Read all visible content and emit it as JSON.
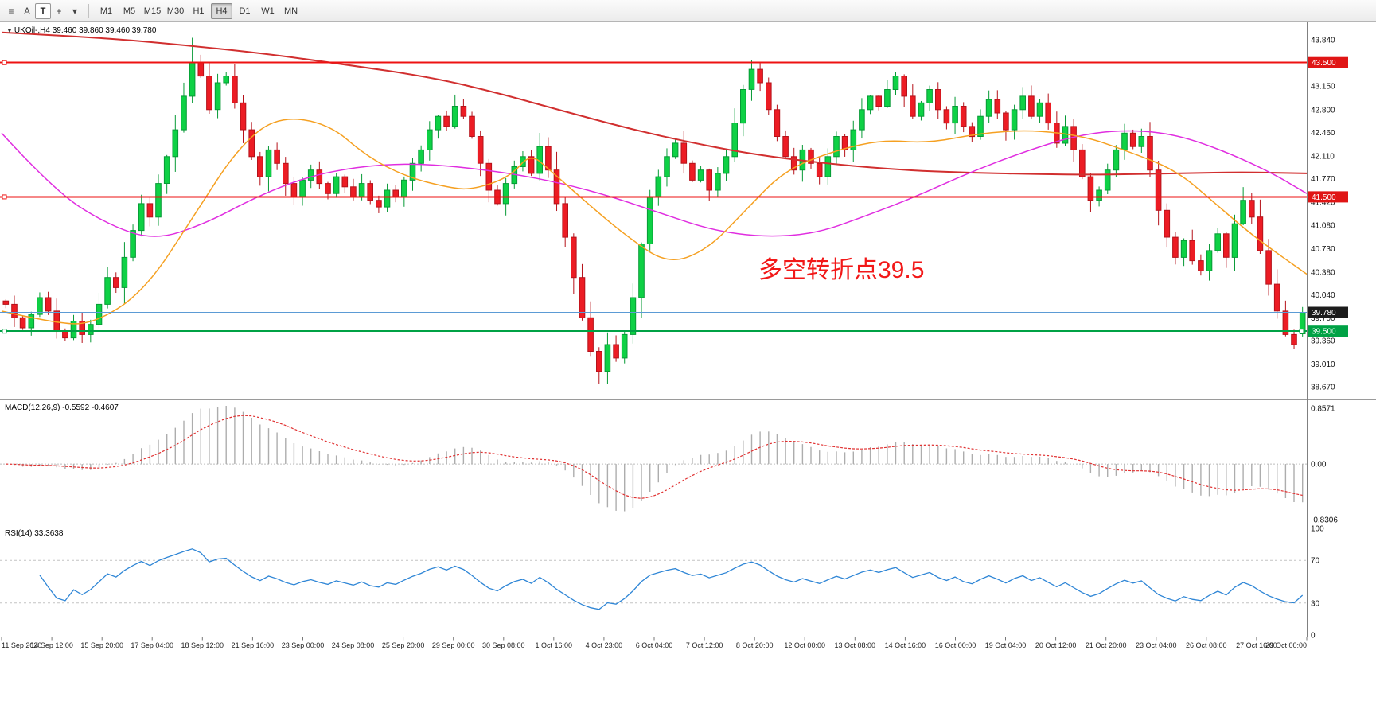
{
  "toolbar": {
    "tools": [
      {
        "name": "chart-properties-icon",
        "glyph": "≡"
      },
      {
        "name": "annotation-a-icon",
        "glyph": "A"
      },
      {
        "name": "text-tool-icon",
        "glyph": "T",
        "boxed": true
      },
      {
        "name": "drawing-tools-icon",
        "glyph": "+"
      },
      {
        "name": "drawing-tools-dropdown-arrow-icon",
        "glyph": "▾"
      }
    ],
    "timeframes": [
      "M1",
      "M5",
      "M15",
      "M30",
      "H1",
      "H4",
      "D1",
      "W1",
      "MN"
    ],
    "active_timeframe": "H4"
  },
  "main_overlays": {
    "collapse_glyph": "▼",
    "title": "UKOil-,H4  39.460 39.860 39.460 39.780"
  },
  "chart_data": {
    "type": "candlestick",
    "symbol": "UKOil-",
    "timeframe": "H4",
    "last_ohlc": {
      "open": 39.46,
      "high": 39.86,
      "low": 39.46,
      "close": 39.78
    },
    "price_range": [
      38.53,
      44.03
    ],
    "first_open": 39.95,
    "closes": [
      39.9,
      39.7,
      39.55,
      39.75,
      40.0,
      39.8,
      39.5,
      39.4,
      39.65,
      39.45,
      39.6,
      39.9,
      40.3,
      40.15,
      40.6,
      41.0,
      41.4,
      41.2,
      41.7,
      42.1,
      42.5,
      43.0,
      43.5,
      43.3,
      42.8,
      43.2,
      43.3,
      42.9,
      42.5,
      42.1,
      41.8,
      42.2,
      42.0,
      41.7,
      41.5,
      41.75,
      41.9,
      41.7,
      41.55,
      41.8,
      41.65,
      41.5,
      41.7,
      41.45,
      41.35,
      41.6,
      41.5,
      41.75,
      42.0,
      42.2,
      42.5,
      42.7,
      42.55,
      42.85,
      42.7,
      42.4,
      42.0,
      41.6,
      41.4,
      41.7,
      41.95,
      42.1,
      41.85,
      42.25,
      41.9,
      41.4,
      40.9,
      40.3,
      39.7,
      39.2,
      38.9,
      39.3,
      39.1,
      39.45,
      40.0,
      40.8,
      41.5,
      41.8,
      42.1,
      42.3,
      42.0,
      41.75,
      41.9,
      41.6,
      41.85,
      42.1,
      42.6,
      43.1,
      43.4,
      43.2,
      42.8,
      42.4,
      42.1,
      41.9,
      42.2,
      42.0,
      41.8,
      42.1,
      42.4,
      42.2,
      42.5,
      42.8,
      43.0,
      42.85,
      43.1,
      43.3,
      43.0,
      42.7,
      42.9,
      43.1,
      42.8,
      42.6,
      42.85,
      42.55,
      42.4,
      42.7,
      42.95,
      42.75,
      42.5,
      42.8,
      43.0,
      42.7,
      42.9,
      42.6,
      42.3,
      42.55,
      42.2,
      41.8,
      41.45,
      41.6,
      41.9,
      42.2,
      42.45,
      42.25,
      42.4,
      41.9,
      41.3,
      40.9,
      40.6,
      40.85,
      40.55,
      40.4,
      40.7,
      40.95,
      40.6,
      41.1,
      41.45,
      41.2,
      40.7,
      40.2,
      39.8,
      39.45,
      39.3,
      39.78
    ],
    "colors": {
      "bull": "#0ed145",
      "bull_stroke": "#079a36",
      "bear": "#ec1c24",
      "bear_stroke": "#b5121a",
      "background": "#ffffff",
      "axis_text": "#111111"
    },
    "y_ticks": [
      "43.840",
      "43.150",
      "42.800",
      "42.460",
      "42.110",
      "41.770",
      "41.420",
      "41.080",
      "40.730",
      "40.380",
      "40.040",
      "39.700",
      "39.360",
      "39.010",
      "38.670"
    ],
    "price_tags": [
      {
        "text": "43.500",
        "price": 43.5,
        "bg": "#e01515",
        "fg": "#ffffff",
        "name": "price-tag-43-5"
      },
      {
        "text": "41.500",
        "price": 41.5,
        "bg": "#e01515",
        "fg": "#ffffff",
        "name": "price-tag-41-5"
      },
      {
        "text": "39.780",
        "price": 39.78,
        "bg": "#1c1c1c",
        "fg": "#ffffff",
        "name": "last-price-tag"
      },
      {
        "text": "39.500",
        "price": 39.5,
        "bg": "#00a245",
        "fg": "#ffffff",
        "name": "price-tag-39-5"
      }
    ],
    "hlines": [
      {
        "price": 43.5,
        "color": "#ee1111",
        "width": 2,
        "name": "resistance-line-43-5",
        "end_markers": "left"
      },
      {
        "price": 41.5,
        "color": "#ee1111",
        "width": 2,
        "name": "resistance-line-41-5",
        "end_markers": "left"
      },
      {
        "price": 39.78,
        "color": "#5b9bd5",
        "width": 1,
        "name": "current-price-line"
      },
      {
        "price": 39.5,
        "color": "#00a245",
        "width": 2,
        "name": "support-line-39-5",
        "end_markers": "both"
      }
    ],
    "ma_lines": [
      {
        "name": "ma-slow-line",
        "color": "#d12f2f",
        "width": 2,
        "points": [
          [
            0,
            43.95
          ],
          [
            0.07,
            43.88
          ],
          [
            0.13,
            43.78
          ],
          [
            0.2,
            43.64
          ],
          [
            0.26,
            43.48
          ],
          [
            0.33,
            43.28
          ],
          [
            0.38,
            43.05
          ],
          [
            0.43,
            42.78
          ],
          [
            0.48,
            42.52
          ],
          [
            0.53,
            42.3
          ],
          [
            0.58,
            42.12
          ],
          [
            0.64,
            41.98
          ],
          [
            0.69,
            41.9
          ],
          [
            0.74,
            41.86
          ],
          [
            0.79,
            41.84
          ],
          [
            0.84,
            41.83
          ],
          [
            0.9,
            41.85
          ],
          [
            0.95,
            41.87
          ],
          [
            1,
            41.85
          ]
        ]
      },
      {
        "name": "ma-medium-line",
        "color": "#e02ee0",
        "width": 1.5,
        "points": [
          [
            0,
            42.45
          ],
          [
            0.04,
            41.6
          ],
          [
            0.08,
            41.1
          ],
          [
            0.117,
            40.85
          ],
          [
            0.156,
            41.1
          ],
          [
            0.195,
            41.5
          ],
          [
            0.234,
            41.8
          ],
          [
            0.273,
            41.95
          ],
          [
            0.312,
            42.0
          ],
          [
            0.35,
            41.95
          ],
          [
            0.39,
            41.85
          ],
          [
            0.43,
            41.7
          ],
          [
            0.468,
            41.5
          ],
          [
            0.506,
            41.25
          ],
          [
            0.545,
            41.0
          ],
          [
            0.584,
            40.9
          ],
          [
            0.623,
            40.95
          ],
          [
            0.66,
            41.2
          ],
          [
            0.7,
            41.5
          ],
          [
            0.74,
            41.85
          ],
          [
            0.78,
            42.15
          ],
          [
            0.82,
            42.4
          ],
          [
            0.857,
            42.5
          ],
          [
            0.896,
            42.45
          ],
          [
            0.935,
            42.2
          ],
          [
            0.974,
            41.85
          ],
          [
            1,
            41.55
          ]
        ]
      },
      {
        "name": "ma-fast-line",
        "color": "#f5a021",
        "width": 1.5,
        "points": [
          [
            0,
            39.8
          ],
          [
            0.04,
            39.62
          ],
          [
            0.07,
            39.6
          ],
          [
            0.11,
            40.1
          ],
          [
            0.15,
            41.3
          ],
          [
            0.18,
            42.2
          ],
          [
            0.21,
            42.7
          ],
          [
            0.25,
            42.6
          ],
          [
            0.28,
            42.1
          ],
          [
            0.31,
            41.8
          ],
          [
            0.34,
            41.65
          ],
          [
            0.36,
            41.6
          ],
          [
            0.39,
            41.8
          ],
          [
            0.405,
            42.15
          ],
          [
            0.42,
            41.9
          ],
          [
            0.455,
            41.3
          ],
          [
            0.48,
            40.9
          ],
          [
            0.51,
            40.5
          ],
          [
            0.54,
            40.7
          ],
          [
            0.57,
            41.3
          ],
          [
            0.6,
            41.9
          ],
          [
            0.64,
            42.2
          ],
          [
            0.675,
            42.35
          ],
          [
            0.71,
            42.3
          ],
          [
            0.75,
            42.45
          ],
          [
            0.79,
            42.5
          ],
          [
            0.83,
            42.4
          ],
          [
            0.86,
            42.2
          ],
          [
            0.9,
            41.9
          ],
          [
            0.93,
            41.4
          ],
          [
            0.96,
            40.9
          ],
          [
            1,
            40.35
          ]
        ]
      }
    ],
    "annotation": {
      "text": "多空转折点39.5",
      "color": "#f21818",
      "x_frac": 0.58,
      "price": 40.3,
      "font_size": 30
    },
    "macd": {
      "label": "MACD(12,26,9) -0.5592 -0.4607",
      "params": [
        12,
        26,
        9
      ],
      "main_value": "-0.5592",
      "signal_value": "-0.4607",
      "ticks": [
        "0.8571",
        "0.00",
        "-0.8306"
      ],
      "range": [
        -0.8306,
        0.8571
      ],
      "histogram_color": "#adadad",
      "signal_color": "#e03131"
    },
    "rsi": {
      "label": "RSI(14) 33.3638",
      "period": 14,
      "last_value": "33.3638",
      "ticks": [
        "100",
        "70",
        "30",
        "0"
      ],
      "levels": [
        70,
        30
      ],
      "line_color": "#2f86d6"
    },
    "x_labels": [
      "11 Sep 2020",
      "14 Sep 12:00",
      "15 Sep 20:00",
      "17 Sep 04:00",
      "18 Sep 12:00",
      "21 Sep 16:00",
      "23 Sep 00:00",
      "24 Sep 08:00",
      "25 Sep 20:00",
      "29 Sep 00:00",
      "30 Sep 08:00",
      "1 Oct 16:00",
      "4 Oct 23:00",
      "6 Oct 04:00",
      "7 Oct 12:00",
      "8 Oct 20:00",
      "12 Oct 00:00",
      "13 Oct 08:00",
      "14 Oct 16:00",
      "16 Oct 00:00",
      "19 Oct 04:00",
      "20 Oct 12:00",
      "21 Oct 20:00",
      "23 Oct 04:00",
      "26 Oct 08:00",
      "27 Oct 16:00",
      "29 Oct 00:00"
    ]
  }
}
